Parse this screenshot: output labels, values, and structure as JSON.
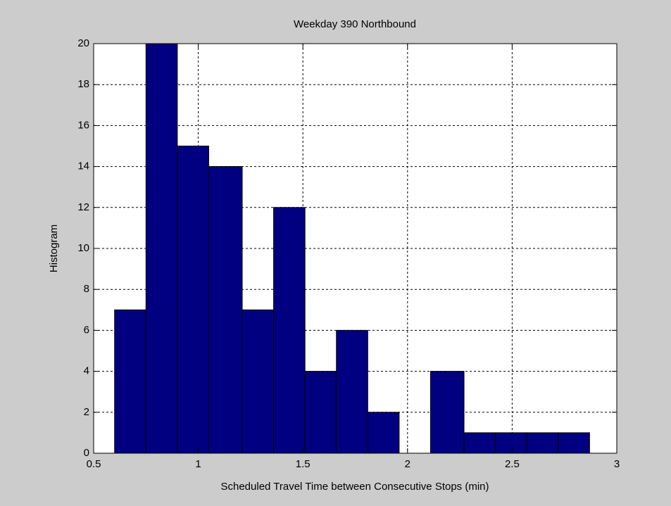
{
  "chart_data": {
    "type": "histogram",
    "title": "Weekday 390 Northbound",
    "xlabel": "Scheduled Travel Time between Consecutive Stops (min)",
    "ylabel": "Histogram",
    "bins": [
      0.6,
      0.75,
      0.9,
      1.05,
      1.21,
      1.36,
      1.51,
      1.66,
      1.81,
      1.96,
      2.11,
      2.27,
      2.42,
      2.57,
      2.72,
      2.87
    ],
    "counts": [
      7,
      20,
      15,
      14,
      7,
      12,
      4,
      6,
      2,
      0,
      4,
      1,
      1,
      1,
      1
    ],
    "color": "#000080",
    "xlim": [
      0.5,
      3
    ],
    "xticks": [
      0.5,
      1,
      1.5,
      2,
      2.5,
      3
    ],
    "ylim": [
      0,
      20
    ],
    "yticks": [
      0,
      2,
      4,
      6,
      8,
      10,
      12,
      14,
      16,
      18,
      20
    ],
    "grid": true
  }
}
